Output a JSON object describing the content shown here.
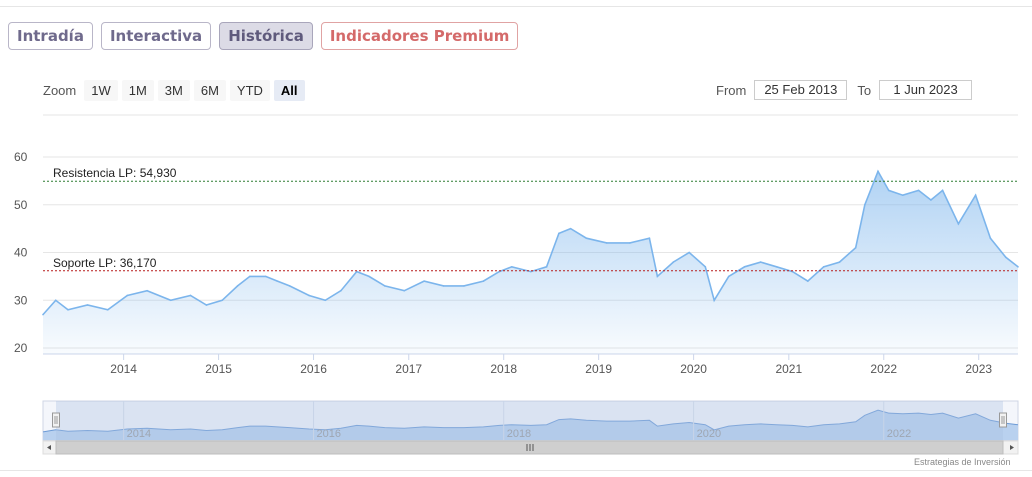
{
  "tabs": [
    {
      "label": "Intradía",
      "state": "normal"
    },
    {
      "label": "Interactiva",
      "state": "normal"
    },
    {
      "label": "Histórica",
      "state": "active"
    },
    {
      "label": "Indicadores Premium",
      "state": "premium"
    }
  ],
  "zoom": {
    "label": "Zoom",
    "buttons": [
      "1W",
      "1M",
      "3M",
      "6M",
      "YTD",
      "All"
    ],
    "selected": "All"
  },
  "range": {
    "from_label": "From",
    "from_value": "25 Feb 2013",
    "to_label": "To",
    "to_value": "1 Jun 2023"
  },
  "credit": "Estrategias de Inversión",
  "colors": {
    "line": "#7cb5ec",
    "resistance": "#2e7d32",
    "support": "#b71c1c",
    "navigator_mask": "#a8bfe3"
  },
  "chart_data": {
    "type": "area",
    "x_start": "2013-02-25",
    "x_end": "2023-06-01",
    "ylim": [
      20,
      60
    ],
    "yticks": [
      20,
      30,
      40,
      50,
      60
    ],
    "xticks": [
      "2014",
      "2015",
      "2016",
      "2017",
      "2018",
      "2019",
      "2020",
      "2021",
      "2022",
      "2023"
    ],
    "navigator_xticks": [
      "2014",
      "2016",
      "2018",
      "2020",
      "2022"
    ],
    "grid": true,
    "levels": [
      {
        "label": "Resistencia LP: 54,930",
        "value": 54.93
      },
      {
        "label": "Soporte LP: 36,170",
        "value": 36.17
      }
    ],
    "series": [
      {
        "x": [
          "2013-02-25",
          "2013-04-15",
          "2013-06-01",
          "2013-08-15",
          "2013-11-01",
          "2014-01-15",
          "2014-04-01",
          "2014-07-01",
          "2014-09-15",
          "2014-11-15",
          "2015-01-15",
          "2015-03-15",
          "2015-05-01",
          "2015-07-01",
          "2015-08-15",
          "2015-10-01",
          "2015-12-15",
          "2016-02-15",
          "2016-04-15",
          "2016-06-15",
          "2016-08-01",
          "2016-10-01",
          "2016-12-15",
          "2017-03-01",
          "2017-05-15",
          "2017-08-01",
          "2017-10-15",
          "2017-12-15",
          "2018-02-01",
          "2018-04-15",
          "2018-06-15",
          "2018-08-01",
          "2018-09-15",
          "2018-11-15",
          "2019-02-01",
          "2019-05-01",
          "2019-07-15",
          "2019-08-15",
          "2019-10-15",
          "2019-12-15",
          "2020-02-15",
          "2020-03-20",
          "2020-05-15",
          "2020-07-15",
          "2020-09-15",
          "2020-11-15",
          "2021-01-15",
          "2021-03-15",
          "2021-05-15",
          "2021-07-15",
          "2021-09-15",
          "2021-10-20",
          "2021-12-10",
          "2022-01-20",
          "2022-03-15",
          "2022-05-15",
          "2022-07-01",
          "2022-08-15",
          "2022-10-15",
          "2022-12-20",
          "2023-02-15",
          "2023-04-15",
          "2023-06-01"
        ],
        "values": [
          27,
          30,
          28,
          29,
          28,
          31,
          32,
          30,
          31,
          29,
          30,
          33,
          35,
          35,
          34,
          33,
          31,
          30,
          32,
          36,
          35,
          33,
          32,
          34,
          33,
          33,
          34,
          36,
          37,
          36,
          37,
          44,
          45,
          43,
          42,
          42,
          43,
          35,
          38,
          40,
          37,
          30,
          35,
          37,
          38,
          37,
          36,
          34,
          37,
          38,
          41,
          50,
          57,
          53,
          52,
          53,
          51,
          53,
          46,
          52,
          43,
          39,
          37
        ]
      }
    ]
  }
}
